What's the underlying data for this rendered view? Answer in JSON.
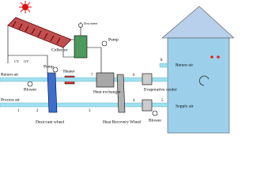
{
  "labels": [
    "Collector",
    "flow meter",
    "Pump",
    "CV",
    "GV",
    "Pump",
    "Heater",
    "Return air",
    "Blower",
    "Process air",
    "Desiccant wheel",
    "Heat exchanger",
    "Evaporative cooler",
    "Heat Recovery Wheel",
    "Blower",
    "Return air",
    "Supply air"
  ],
  "state_points": [
    "1",
    "2",
    "3",
    "4",
    "5",
    "6",
    "7",
    "8"
  ]
}
